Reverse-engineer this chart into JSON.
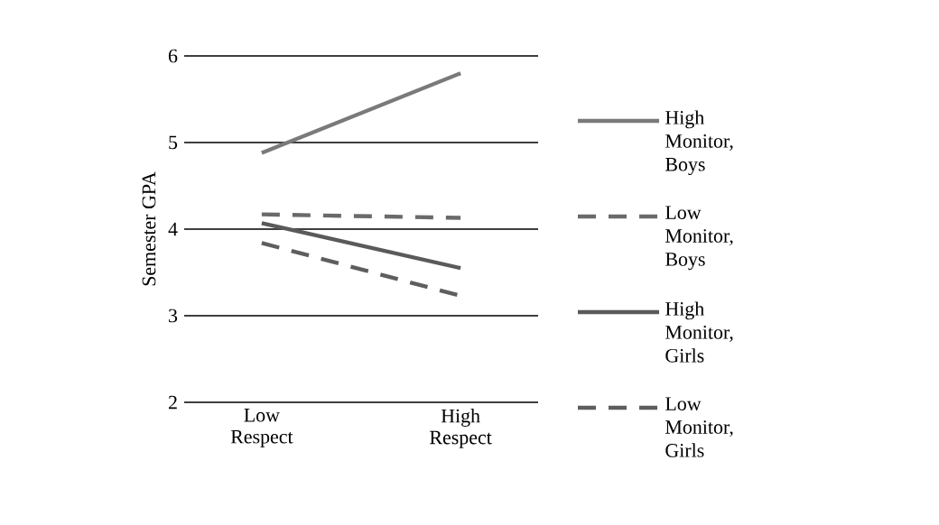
{
  "chart_data": {
    "type": "line",
    "ylabel": "Semester GPA",
    "categories": [
      "Low Respect",
      "High Respect"
    ],
    "ylim": [
      2,
      6
    ],
    "yticks": [
      2,
      3,
      4,
      5,
      6
    ],
    "grid": "y",
    "legend": "right",
    "marker": "none",
    "series": [
      {
        "name": "High Monitor, Boys",
        "color": "#7a7a7a",
        "line_style": "solid",
        "values": [
          4.88,
          5.8
        ]
      },
      {
        "name": "Low Monitor, Boys",
        "color": "#6a6a6a",
        "line_style": "dashed",
        "values": [
          4.17,
          4.13
        ]
      },
      {
        "name": "High Monitor, Girls",
        "color": "#5a5a5a",
        "line_style": "solid",
        "values": [
          4.07,
          3.55
        ]
      },
      {
        "name": "Low Monitor, Girls",
        "color": "#5e5e5e",
        "line_style": "dashed",
        "values": [
          3.84,
          3.23
        ]
      }
    ]
  }
}
